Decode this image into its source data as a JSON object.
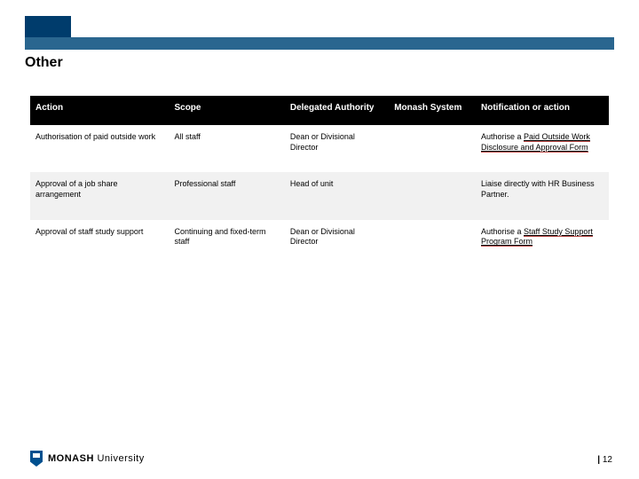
{
  "accent_color": "#003c6c",
  "bar_color": "#2a668f",
  "title": "Other",
  "table": {
    "header_bg": "#000000",
    "header_fg": "#ffffff",
    "row_bg": [
      "#ffffff",
      "#f1f1f1",
      "#ffffff"
    ],
    "columns": [
      {
        "key": "action",
        "label": "Action",
        "width_pct": 24
      },
      {
        "key": "scope",
        "label": "Scope",
        "width_pct": 20
      },
      {
        "key": "delegated",
        "label": "Delegated Authority",
        "width_pct": 18
      },
      {
        "key": "monash",
        "label": "Monash System",
        "width_pct": 15
      },
      {
        "key": "notif",
        "label": "Notification or action",
        "width_pct": 23
      }
    ],
    "rows": [
      {
        "action": "Authorisation of paid outside work",
        "scope": "All staff",
        "delegated": "Dean or Divisional Director",
        "monash": "",
        "notif_prefix": "Authorise a ",
        "notif_link": "Paid Outside Work Disclosure and Approval Form",
        "notif_suffix": ""
      },
      {
        "action": "Approval of a job share arrangement",
        "scope": "Professional staff",
        "delegated": "Head of unit",
        "monash": "",
        "notif_prefix": "Liaise directly with HR Business Partner.",
        "notif_link": "",
        "notif_suffix": ""
      },
      {
        "action": "Approval of staff study support",
        "scope": "Continuing and fixed-term staff",
        "delegated": "Dean or Divisional Director",
        "monash": "",
        "notif_prefix": "Authorise a ",
        "notif_link": "Staff Study Support Program Form",
        "notif_suffix": ""
      }
    ]
  },
  "footer": {
    "logo_bold": "MONASH",
    "logo_light": " University",
    "page_number": "12"
  }
}
